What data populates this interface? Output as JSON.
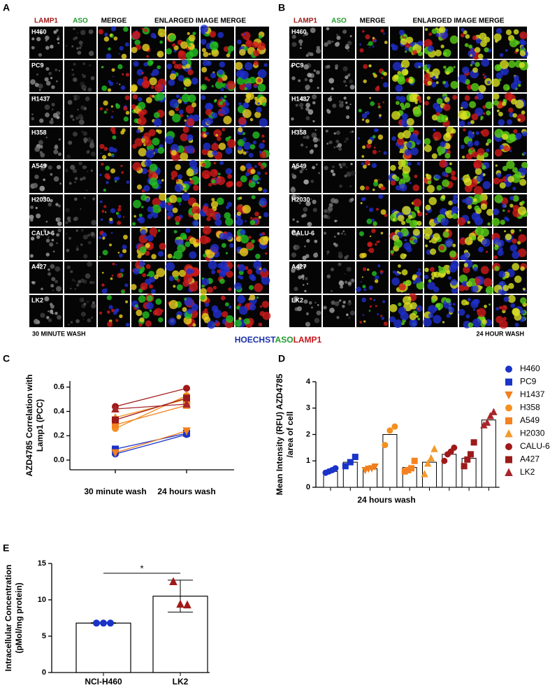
{
  "images": [
    {
      "panel_label": "A",
      "columns": [
        "LAMP1",
        "ASO",
        "MERGE",
        "ENLARGED IMAGE MERGE"
      ],
      "rows": [
        "H460",
        "PC9",
        "H1437",
        "H358",
        "A549",
        "H2030",
        "CALU-6",
        "A427",
        "LK2"
      ],
      "footer": "30 MINUTE WASH"
    },
    {
      "panel_label": "B",
      "columns": [
        "LAMP1",
        "ASO",
        "MERGE",
        "ENLARGED IMAGE MERGE"
      ],
      "rows": [
        "H460",
        "PC9",
        "H1437",
        "H358",
        "A549",
        "H2030",
        "CALU-6",
        "A427",
        "LK2"
      ],
      "footer": "24 HOUR WASH"
    }
  ],
  "stain_legend": [
    {
      "text": "HOECHST",
      "color": "#1a2fa8"
    },
    {
      "text": "ASO",
      "color": "#1f9a2a"
    },
    {
      "text": "LAMP1",
      "color": "#c8161d"
    }
  ],
  "chart_data": [
    {
      "panel_label": "C",
      "type": "line",
      "ylabel": "AZD4785 Correlation with Lamp1 (PCC)",
      "categories": [
        "30 minute wash",
        "24 hours wash"
      ],
      "ylim": [
        -0.08,
        0.65
      ],
      "yticks": [
        {
          "value": 0,
          "label": "0.0"
        },
        0.2,
        0.4,
        0.6
      ],
      "series": [
        {
          "name": "H460",
          "color": "#1a33c8",
          "marker": "circle",
          "values": [
            0.05,
            0.21
          ]
        },
        {
          "name": "PC9",
          "color": "#1a33c8",
          "marker": "square",
          "values": [
            0.09,
            0.22
          ]
        },
        {
          "name": "H1437",
          "color": "#f07f1e",
          "marker": "triangle-down",
          "values": [
            0.06,
            0.24
          ]
        },
        {
          "name": "H358",
          "color": "#f4901f",
          "marker": "circle",
          "values": [
            0.26,
            0.53
          ]
        },
        {
          "name": "A549",
          "color": "#f58220",
          "marker": "square",
          "values": [
            0.29,
            0.45
          ]
        },
        {
          "name": "H2030",
          "color": "#f29a2e",
          "marker": "triangle-up",
          "values": [
            0.35,
            0.5
          ]
        },
        {
          "name": "CALU-6",
          "color": "#a01818",
          "marker": "circle",
          "values": [
            0.44,
            0.59
          ]
        },
        {
          "name": "A427",
          "color": "#9b1b1b",
          "marker": "square",
          "values": [
            0.33,
            0.51
          ]
        },
        {
          "name": "LK2",
          "color": "#a8262a",
          "marker": "triangle-up",
          "values": [
            0.42,
            0.46
          ]
        }
      ]
    },
    {
      "panel_label": "D",
      "type": "bar",
      "ylabel": "Mean Intensity (RFU) AZD4785 /area of cell",
      "xlabel": "24 hours wash",
      "ylim": [
        0,
        4
      ],
      "yticks": [
        0,
        1,
        2,
        3,
        4
      ],
      "legend": "right",
      "series": [
        {
          "name": "H460",
          "color": "#1a33c8",
          "marker": "circle",
          "value": 0.6,
          "points": [
            0.55,
            0.6,
            0.65,
            0.72
          ]
        },
        {
          "name": "PC9",
          "color": "#1a33c8",
          "marker": "square",
          "value": 0.95,
          "points": [
            0.8,
            0.95,
            1.15
          ]
        },
        {
          "name": "H1437",
          "color": "#f07f1e",
          "marker": "triangle-down",
          "value": 0.7,
          "points": [
            0.65,
            0.7,
            0.72,
            0.78
          ]
        },
        {
          "name": "H358",
          "color": "#f4901f",
          "marker": "circle",
          "value": 2.0,
          "points": [
            1.6,
            2.15,
            2.3
          ]
        },
        {
          "name": "A549",
          "color": "#f58220",
          "marker": "square",
          "value": 0.75,
          "points": [
            0.6,
            0.65,
            0.72,
            1.0
          ]
        },
        {
          "name": "H2030",
          "color": "#f29a2e",
          "marker": "triangle-up",
          "value": 0.95,
          "points": [
            0.5,
            0.9,
            1.1,
            1.45
          ]
        },
        {
          "name": "CALU-6",
          "color": "#a01818",
          "marker": "circle",
          "value": 1.25,
          "points": [
            1.0,
            1.25,
            1.35,
            1.5
          ]
        },
        {
          "name": "A427",
          "color": "#9b1b1b",
          "marker": "square",
          "value": 1.1,
          "points": [
            0.8,
            1.05,
            1.25,
            1.7
          ]
        },
        {
          "name": "LK2",
          "color": "#a8262a",
          "marker": "triangle-up",
          "value": 2.55,
          "points": [
            2.35,
            2.45,
            2.7,
            2.85
          ]
        }
      ]
    },
    {
      "panel_label": "E",
      "type": "bar",
      "ylabel": "Intracellular Concentration (pMol/mg protein)",
      "categories": [
        "NCI-H460",
        "LK2"
      ],
      "values": [
        6.8,
        10.5
      ],
      "errors": [
        0.05,
        2.2
      ],
      "colors": [
        "#1a33c8",
        "#a01818"
      ],
      "markers": [
        "circle",
        "triangle-up"
      ],
      "points": [
        [
          6.8,
          6.8,
          6.8
        ],
        [
          12.5,
          9.4,
          9.3
        ]
      ],
      "ylim": [
        0,
        15
      ],
      "yticks": [
        0,
        5,
        10,
        15
      ],
      "significance": "*"
    }
  ]
}
